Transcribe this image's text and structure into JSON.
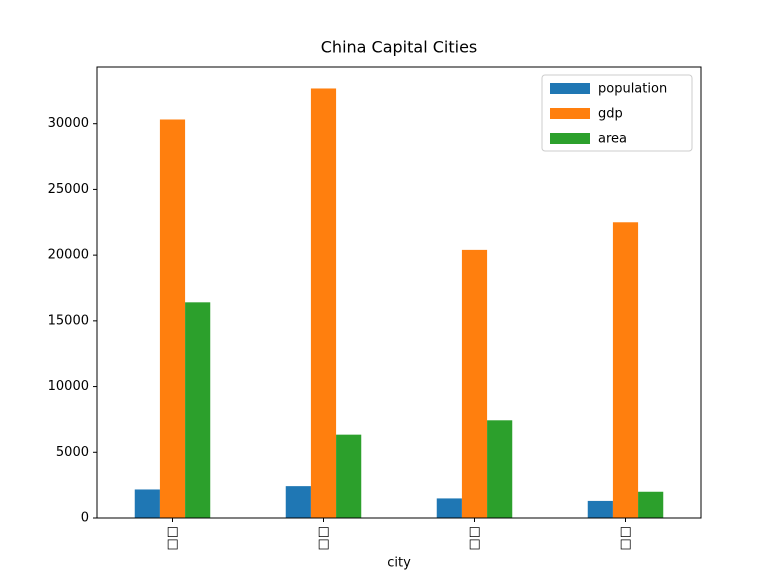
{
  "chart_data": {
    "type": "bar",
    "title": "China Capital Cities",
    "x_label": "city",
    "categories": [
      "□□",
      "□□",
      "□□",
      "□□"
    ],
    "series": [
      {
        "name": "population",
        "color": "#1f77b4",
        "values": [
          2171,
          2424,
          1490,
          1300
        ]
      },
      {
        "name": "gdp",
        "color": "#ff7f0e",
        "values": [
          30320,
          32680,
          20400,
          22500
        ]
      },
      {
        "name": "area",
        "color": "#2ca02c",
        "values": [
          16410,
          6341,
          7434,
          1997
        ]
      }
    ],
    "ylim": [
      0,
      34314
    ],
    "yticks": [
      0,
      5000,
      10000,
      15000,
      20000,
      25000,
      30000
    ],
    "legend": "upper right"
  }
}
